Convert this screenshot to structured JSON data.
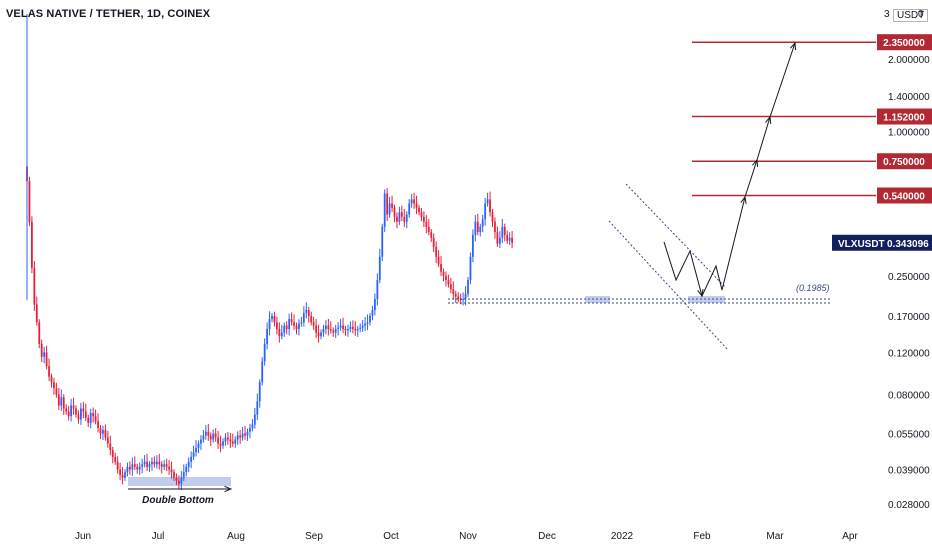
{
  "header": {
    "title": "VELAS NATIVE / TETHER, 1D, COINEX",
    "currency": "USDT",
    "top_tick_left": "3",
    "top_tick_right": "0"
  },
  "colors": {
    "up": "#2962ff",
    "down": "#e91e3a",
    "level": "#b22833",
    "ticker_bg": "#131e5c",
    "zone": "#c2ccef",
    "channel": "#3a4a8c"
  },
  "chart_data": {
    "type": "candlestick",
    "title": "VELAS NATIVE / TETHER, 1D, COINEX",
    "y_scale": "log",
    "y_ticks": [
      "2.000000",
      "1.400000",
      "1.000000",
      "0.250000",
      "0.170000",
      "0.120000",
      "0.080000",
      "0.055000",
      "0.039000",
      "0.028000"
    ],
    "x_ticks": [
      "Jun",
      "Jul",
      "Aug",
      "Sep",
      "Oct",
      "Nov",
      "Dec",
      "2022",
      "Feb",
      "Mar",
      "Apr"
    ],
    "price_levels": [
      {
        "label": "2.350000",
        "value": 2.35
      },
      {
        "label": "1.152000",
        "value": 1.152
      },
      {
        "label": "0.750000",
        "value": 0.75
      },
      {
        "label": "0.540000",
        "value": 0.54
      }
    ],
    "current_price": {
      "symbol": "VLXUSDT",
      "value": "0.343096"
    },
    "support_label": "(0.1985)",
    "annotation": "Double Bottom",
    "closes": [
      0.62,
      0.42,
      0.27,
      0.19,
      0.16,
      0.13,
      0.115,
      0.12,
      0.105,
      0.095,
      0.09,
      0.085,
      0.08,
      0.072,
      0.078,
      0.07,
      0.068,
      0.065,
      0.072,
      0.07,
      0.066,
      0.063,
      0.07,
      0.068,
      0.064,
      0.061,
      0.067,
      0.065,
      0.062,
      0.058,
      0.055,
      0.057,
      0.053,
      0.05,
      0.047,
      0.044,
      0.042,
      0.039,
      0.037,
      0.036,
      0.038,
      0.04,
      0.039,
      0.041,
      0.04,
      0.039,
      0.04,
      0.041,
      0.042,
      0.04,
      0.041,
      0.042,
      0.041,
      0.042,
      0.041,
      0.04,
      0.041,
      0.04,
      0.039,
      0.038,
      0.036,
      0.035,
      0.034,
      0.036,
      0.038,
      0.04,
      0.042,
      0.044,
      0.046,
      0.048,
      0.05,
      0.052,
      0.054,
      0.056,
      0.054,
      0.052,
      0.055,
      0.053,
      0.05,
      0.049,
      0.051,
      0.053,
      0.052,
      0.051,
      0.05,
      0.052,
      0.054,
      0.053,
      0.055,
      0.054,
      0.056,
      0.058,
      0.06,
      0.066,
      0.075,
      0.09,
      0.11,
      0.13,
      0.15,
      0.165,
      0.17,
      0.16,
      0.15,
      0.14,
      0.145,
      0.155,
      0.15,
      0.165,
      0.16,
      0.155,
      0.15,
      0.158,
      0.16,
      0.175,
      0.18,
      0.17,
      0.16,
      0.155,
      0.145,
      0.14,
      0.145,
      0.15,
      0.155,
      0.15,
      0.148,
      0.145,
      0.15,
      0.152,
      0.155,
      0.15,
      0.148,
      0.15,
      0.153,
      0.15,
      0.148,
      0.15,
      0.152,
      0.155,
      0.158,
      0.16,
      0.17,
      0.18,
      0.2,
      0.24,
      0.3,
      0.4,
      0.55,
      0.45,
      0.5,
      0.48,
      0.44,
      0.42,
      0.46,
      0.44,
      0.42,
      0.45,
      0.5,
      0.52,
      0.5,
      0.48,
      0.46,
      0.44,
      0.42,
      0.4,
      0.38,
      0.36,
      0.33,
      0.3,
      0.28,
      0.26,
      0.25,
      0.24,
      0.23,
      0.22,
      0.21,
      0.205,
      0.2,
      0.198,
      0.2,
      0.21,
      0.24,
      0.3,
      0.37,
      0.42,
      0.38,
      0.4,
      0.43,
      0.5,
      0.52,
      0.46,
      0.42,
      0.38,
      0.34,
      0.36,
      0.4,
      0.37,
      0.35,
      0.36,
      0.343
    ]
  }
}
